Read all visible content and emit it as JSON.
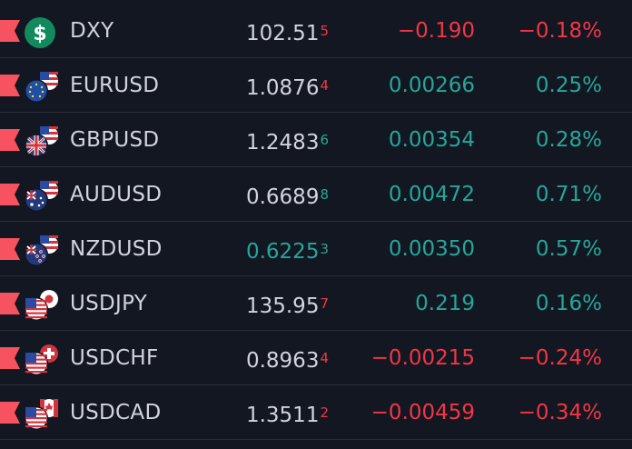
{
  "colors": {
    "up": "#26a69a",
    "down": "#f23645",
    "neutral": "#d1d4dc",
    "flag": "#f7525f",
    "background": "#131722"
  },
  "rows": [
    {
      "symbol": "DXY",
      "icon": "dollar-sign-icon",
      "last_main": "102.51",
      "last_tail": "5",
      "last_dir": "neutral",
      "tail_dir": "down",
      "change": "−0.190",
      "change_pct": "−0.18%",
      "dir": "down"
    },
    {
      "symbol": "EURUSD",
      "icon": "eu-us-flags-icon",
      "last_main": "1.0876",
      "last_tail": "4",
      "last_dir": "neutral",
      "tail_dir": "down",
      "change": "0.00266",
      "change_pct": "0.25%",
      "dir": "up"
    },
    {
      "symbol": "GBPUSD",
      "icon": "uk-us-flags-icon",
      "last_main": "1.2483",
      "last_tail": "6",
      "last_dir": "neutral",
      "tail_dir": "up",
      "change": "0.00354",
      "change_pct": "0.28%",
      "dir": "up"
    },
    {
      "symbol": "AUDUSD",
      "icon": "australia-us-flags-icon",
      "last_main": "0.6689",
      "last_tail": "8",
      "last_dir": "neutral",
      "tail_dir": "up",
      "change": "0.00472",
      "change_pct": "0.71%",
      "dir": "up"
    },
    {
      "symbol": "NZDUSD",
      "icon": "new-zealand-us-flags-icon",
      "last_main": "0.6225",
      "last_tail": "3",
      "last_dir": "up",
      "tail_dir": "up",
      "change": "0.00350",
      "change_pct": "0.57%",
      "dir": "up"
    },
    {
      "symbol": "USDJPY",
      "icon": "us-japan-flags-icon",
      "last_main": "135.95",
      "last_tail": "7",
      "last_dir": "neutral",
      "tail_dir": "down",
      "change": "0.219",
      "change_pct": "0.16%",
      "dir": "up"
    },
    {
      "symbol": "USDCHF",
      "icon": "us-switzerland-flags-icon",
      "last_main": "0.8963",
      "last_tail": "4",
      "last_dir": "neutral",
      "tail_dir": "down",
      "change": "−0.00215",
      "change_pct": "−0.24%",
      "dir": "down"
    },
    {
      "symbol": "USDCAD",
      "icon": "us-canada-flags-icon",
      "last_main": "1.3511",
      "last_tail": "2",
      "last_dir": "neutral",
      "tail_dir": "down",
      "change": "−0.00459",
      "change_pct": "−0.34%",
      "dir": "down"
    }
  ]
}
